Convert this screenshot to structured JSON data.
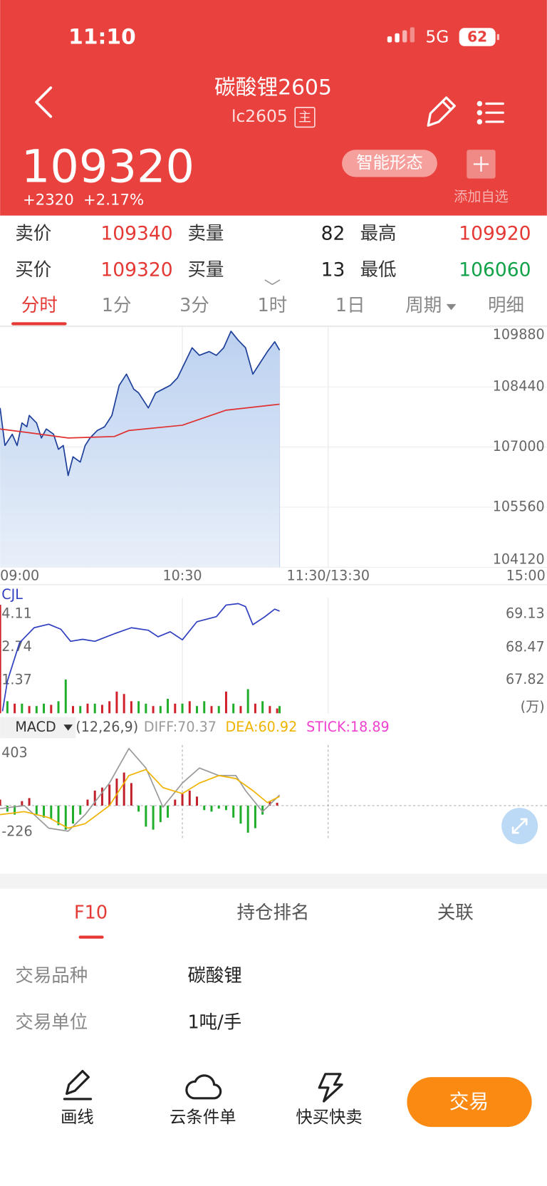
{
  "status_bar": {
    "time": "11:10",
    "network": "5G",
    "battery": "62"
  },
  "header": {
    "title": "碳酸锂2605",
    "code": "lc2605",
    "badge": "主"
  },
  "quote": {
    "price": "109320",
    "change": "+2320",
    "change_pct": "+2.17%",
    "pattern_button": "智能形态",
    "add_watchlist": "添加自选"
  },
  "order_book": {
    "rows": [
      [
        "卖价",
        "109340",
        "卖量",
        "82",
        "最高",
        "109920"
      ],
      [
        "买价",
        "109320",
        "买量",
        "13",
        "最低",
        "106060"
      ]
    ]
  },
  "period_tabs": [
    "分时",
    "1分",
    "3分",
    "1时",
    "1日",
    "周期",
    "明细"
  ],
  "chart_data": [
    {
      "type": "line",
      "xlim": [
        0,
        225
      ],
      "xticks": [
        {
          "value": 0,
          "label": "09:00"
        },
        {
          "value": 75,
          "label": "10:30"
        },
        {
          "value": 135,
          "label": "11:30/13:30"
        },
        {
          "value": 225,
          "label": "15:00"
        }
      ],
      "ylim": [
        104120,
        109880
      ],
      "yticks": [
        109880,
        108440,
        107000,
        105560,
        104120
      ],
      "grid": true,
      "series": [
        {
          "color": "#1d3f9a",
          "area": true,
          "x": [
            0,
            2,
            5,
            7,
            9,
            11,
            12,
            15,
            17,
            19,
            22,
            24,
            26,
            28,
            30,
            33,
            35,
            37,
            40,
            43,
            46,
            49,
            52,
            55,
            57,
            61,
            64,
            67,
            70,
            73,
            76,
            79,
            82,
            86,
            89,
            92,
            95,
            98,
            101,
            104,
            107,
            110,
            113,
            115
          ],
          "values": [
            107936,
            107036,
            107306,
            107036,
            107576,
            107486,
            107756,
            107576,
            107216,
            107432,
            107306,
            106946,
            107036,
            106316,
            106766,
            106640,
            107036,
            107216,
            107396,
            107486,
            107756,
            108476,
            108746,
            108386,
            108296,
            107936,
            108296,
            108386,
            108476,
            108656,
            109016,
            109376,
            109196,
            109286,
            109196,
            109376,
            109772,
            109556,
            109376,
            108746,
            109016,
            109286,
            109520,
            109320
          ]
        },
        {
          "color": "#e03030",
          "x": [
            0,
            12,
            28,
            47,
            53,
            75,
            93,
            115
          ],
          "values": [
            107432,
            107342,
            107216,
            107252,
            107396,
            107522,
            107882,
            108026
          ]
        }
      ]
    },
    {
      "type": "bar",
      "title": "CJL",
      "xlim": [
        0,
        225
      ],
      "ylim": [
        0,
        4.8
      ],
      "yticks": [
        4.11,
        2.74,
        1.37
      ],
      "y2lim": [
        67.16,
        69.46
      ],
      "y2ticks": [
        69.13,
        68.47,
        67.82
      ],
      "y2label": "(万)",
      "series": [
        {
          "color": "#d0212b",
          "x": [
            0,
            6,
            12,
            21,
            30,
            36,
            42,
            45,
            48,
            51,
            54,
            63,
            72,
            78,
            87,
            93,
            99,
            105,
            111,
            114
          ],
          "values": [
            4.5,
            0.4,
            0.3,
            0.35,
            0.3,
            0.4,
            0.35,
            0.5,
            0.9,
            0.8,
            0.5,
            0.3,
            0.4,
            0.5,
            0.3,
            0.9,
            0.3,
            0.4,
            0.3,
            0.2
          ]
        },
        {
          "color": "#1fae2a",
          "x": [
            3,
            9,
            15,
            18,
            24,
            27,
            33,
            39,
            57,
            60,
            66,
            69,
            75,
            81,
            84,
            90,
            96,
            102,
            108,
            115
          ],
          "values": [
            0.5,
            0.4,
            0.3,
            0.4,
            0.5,
            1.4,
            0.3,
            0.4,
            0.5,
            0.4,
            0.3,
            0.6,
            0.4,
            0.3,
            0.5,
            0.3,
            0.4,
            1.0,
            0.5,
            0.3
          ]
        },
        {
          "type": "line",
          "axis": "y2",
          "color": "#2f3fc0",
          "x": [
            1,
            3,
            8,
            14,
            20,
            25,
            29,
            34,
            39,
            47,
            54,
            61,
            65,
            70,
            75,
            81,
            89,
            93,
            98,
            101,
            104,
            109,
            113,
            115
          ],
          "values": [
            67.2,
            67.8,
            68.56,
            68.86,
            68.93,
            68.83,
            68.59,
            68.63,
            68.59,
            68.74,
            68.86,
            68.81,
            68.68,
            68.78,
            68.62,
            68.98,
            69.08,
            69.31,
            69.34,
            69.28,
            68.92,
            69.08,
            69.23,
            69.19
          ]
        }
      ]
    },
    {
      "type": "macd",
      "title": "MACD",
      "params": "(12,26,9)",
      "xlim": [
        0,
        225
      ],
      "ylim": [
        -226,
        403
      ],
      "yticks": [
        403,
        -226
      ],
      "series": [
        {
          "name": "DIFF:70.37",
          "type": "line",
          "color": "#9a9a9a",
          "x": [
            0,
            10,
            20,
            28,
            35,
            45,
            53,
            60,
            67,
            75,
            82,
            90,
            97,
            101,
            108,
            115
          ],
          "values": [
            -20,
            0,
            -150,
            -170,
            -60,
            150,
            380,
            250,
            -10,
            150,
            250,
            200,
            200,
            100,
            -40,
            70.37
          ]
        },
        {
          "name": "DEA:60.92",
          "type": "line",
          "color": "#f0b400",
          "x": [
            0,
            10,
            20,
            28,
            35,
            45,
            53,
            60,
            67,
            75,
            82,
            90,
            97,
            104,
            110,
            115
          ],
          "values": [
            -60,
            -40,
            -80,
            -150,
            -120,
            0,
            200,
            240,
            120,
            80,
            150,
            200,
            180,
            100,
            20,
            60.92
          ]
        },
        {
          "name": "STICK:18.89",
          "type": "bar",
          "color": "#f040d0",
          "up_color": "#c0202a",
          "down_color": "#1fae2a",
          "x": [
            0,
            3,
            6,
            9,
            12,
            15,
            18,
            21,
            24,
            27,
            30,
            33,
            36,
            39,
            42,
            45,
            48,
            51,
            54,
            57,
            60,
            63,
            66,
            69,
            72,
            75,
            78,
            81,
            84,
            87,
            90,
            93,
            96,
            99,
            102,
            105,
            108,
            111,
            114
          ],
          "values": [
            40,
            -40,
            -60,
            30,
            50,
            -60,
            -80,
            -90,
            -130,
            -160,
            -120,
            -60,
            40,
            100,
            120,
            140,
            180,
            220,
            150,
            -40,
            -140,
            -160,
            -110,
            -80,
            40,
            80,
            100,
            60,
            -30,
            -40,
            -20,
            -30,
            -80,
            -120,
            -180,
            -150,
            -60,
            30,
            18.89
          ]
        }
      ]
    }
  ],
  "f10_tabs": [
    "F10",
    "持仓排名",
    "关联"
  ],
  "info_rows": [
    [
      "交易品种",
      "碳酸锂"
    ],
    [
      "交易单位",
      "1吨/手"
    ]
  ],
  "bottom_bar": {
    "items": [
      "画线",
      "云条件单",
      "快买快卖"
    ],
    "trade_button": "交易"
  }
}
